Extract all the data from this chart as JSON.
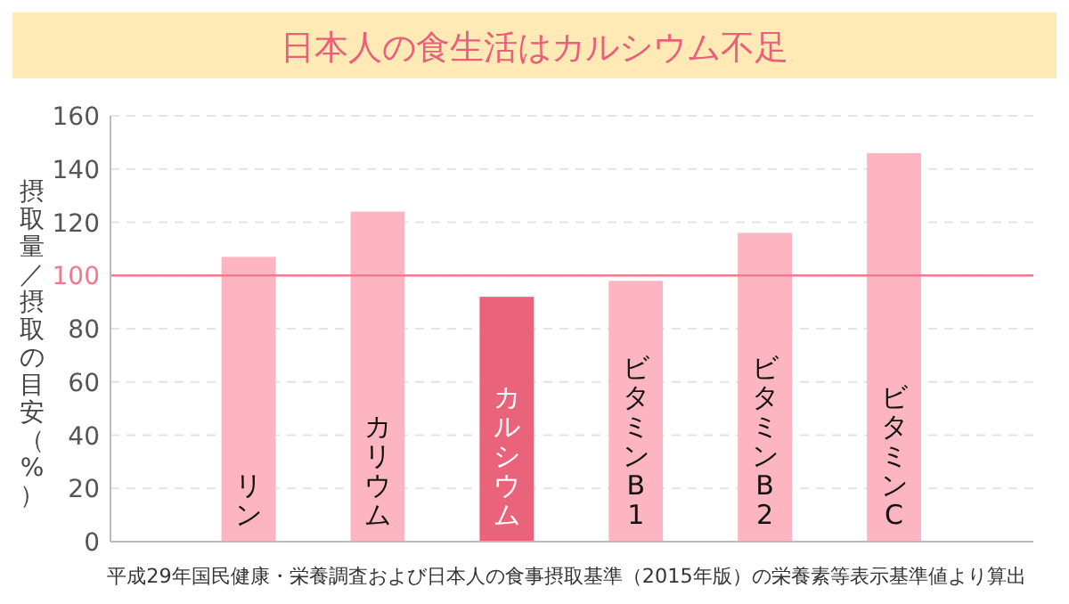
{
  "chart_data": {
    "type": "bar",
    "title": "日本人の食生活はカルシウム不足",
    "ylabel": "摂取量／摂取の目安（%）",
    "categories": [
      "リン",
      "カリウム",
      "カルシウム",
      "ビタミンB1",
      "ビタミンB2",
      "ビタミンC"
    ],
    "values": [
      107,
      124,
      92,
      98,
      116,
      146
    ],
    "colors": [
      "#fdb6c1",
      "#fdb6c1",
      "#e9637b",
      "#fdb6c1",
      "#fdb6c1",
      "#fdb6c1"
    ],
    "ylim": [
      0,
      160
    ],
    "yticks": [
      0,
      20,
      40,
      60,
      80,
      100,
      120,
      140,
      160
    ],
    "grid": "y",
    "ref_lines": [
      {
        "axis": "y",
        "value": 100,
        "color": "#f07a8c"
      }
    ],
    "annotations": [
      "平成29年国民健康・栄養調査および日本人の食事摂取基準（2015年版）の栄養素等表示基準値より算出"
    ]
  }
}
